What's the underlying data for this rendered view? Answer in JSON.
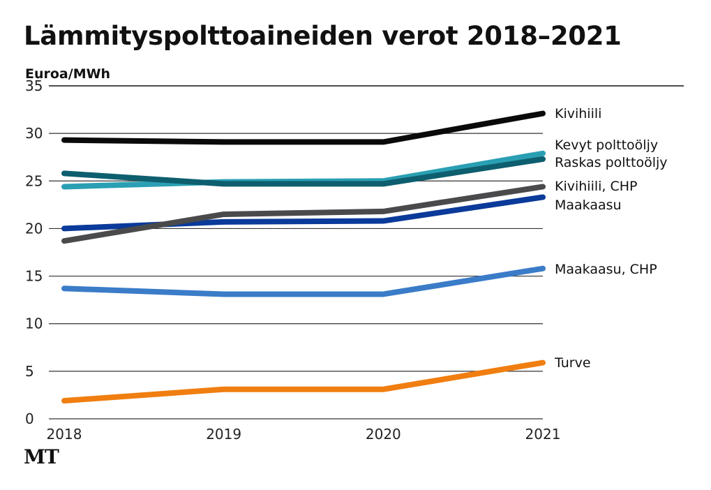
{
  "chart_data": {
    "type": "line",
    "title": "Lämmityspolttoaineiden verot 2018–2021",
    "ylabel": "Euroa/MWh",
    "xlabel": "",
    "x": [
      "2018",
      "2019",
      "2020",
      "2021"
    ],
    "yticks": [
      "0",
      "5",
      "10",
      "15",
      "20",
      "25",
      "30",
      "35"
    ],
    "ylim": [
      0,
      35
    ],
    "grid": true,
    "legend": "right-end labels",
    "series": [
      {
        "name": "Kivihiili",
        "color": "#0a0a0a",
        "values": [
          29.3,
          29.1,
          29.1,
          32.1
        ]
      },
      {
        "name": "Kevyt polttoöljy",
        "color": "#2a9fb3",
        "values": [
          24.4,
          24.9,
          25.0,
          27.9
        ]
      },
      {
        "name": "Raskas polttoöljy",
        "color": "#0d5e6e",
        "values": [
          25.8,
          24.7,
          24.7,
          27.3
        ]
      },
      {
        "name": "Kivihiili, CHP",
        "color": "#4a4a4c",
        "values": [
          18.7,
          21.5,
          21.8,
          24.4
        ]
      },
      {
        "name": "Maakaasu",
        "color": "#0a3a9a",
        "values": [
          20.0,
          20.7,
          20.8,
          23.3
        ]
      },
      {
        "name": "Maakaasu, CHP",
        "color": "#3a7cc8",
        "values": [
          13.7,
          13.1,
          13.1,
          15.8
        ]
      },
      {
        "name": "Turve",
        "color": "#f07e10",
        "values": [
          1.9,
          3.1,
          3.1,
          5.9
        ]
      }
    ],
    "labels": [
      {
        "text": "Kivihiili",
        "series": 0
      },
      {
        "text": "Kevyt polttoöljy",
        "series": 1
      },
      {
        "text": "Raskas polttoöljy",
        "series": 2
      },
      {
        "text": "Kivihiili, CHP",
        "series": 3
      },
      {
        "text": "Maakaasu",
        "series": 4
      },
      {
        "text": "Maakaasu, CHP",
        "series": 5
      },
      {
        "text": "Turve",
        "series": 6
      }
    ]
  },
  "logo": "MT"
}
